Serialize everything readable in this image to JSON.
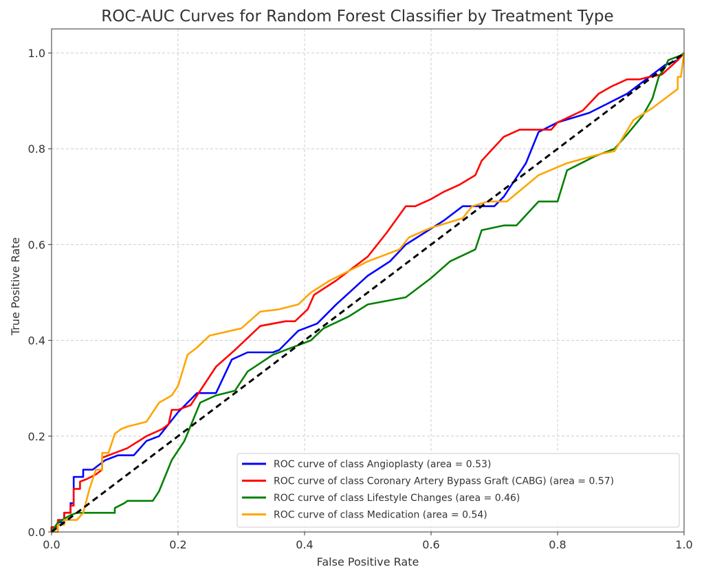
{
  "chart_data": {
    "type": "line",
    "title": "ROC-AUC Curves for Random Forest Classifier by Treatment Type",
    "xlabel": "False Positive Rate",
    "ylabel": "True Positive Rate",
    "xlim": [
      0.0,
      1.0
    ],
    "ylim": [
      0.0,
      1.05
    ],
    "xticks": [
      "0.0",
      "0.2",
      "0.4",
      "0.6",
      "0.8",
      "1.0"
    ],
    "yticks": [
      "0.0",
      "0.2",
      "0.4",
      "0.6",
      "0.8",
      "1.0"
    ],
    "grid": true,
    "legend_position": "lower-right",
    "series": [
      {
        "name": "ROC curve of class Angioplasty (area = 0.53)",
        "color": "#0000ff",
        "x": [
          0.0,
          0.0,
          0.01,
          0.01,
          0.02,
          0.02,
          0.03,
          0.03,
          0.035,
          0.035,
          0.05,
          0.05,
          0.065,
          0.07,
          0.085,
          0.105,
          0.13,
          0.15,
          0.17,
          0.2,
          0.23,
          0.26,
          0.285,
          0.31,
          0.35,
          0.36,
          0.39,
          0.42,
          0.45,
          0.5,
          0.535,
          0.56,
          0.62,
          0.65,
          0.7,
          0.715,
          0.75,
          0.77,
          0.8,
          0.85,
          0.88,
          0.91,
          0.95,
          0.97,
          0.99,
          1.0
        ],
        "y": [
          0.0,
          0.01,
          0.01,
          0.02,
          0.02,
          0.04,
          0.04,
          0.06,
          0.06,
          0.115,
          0.115,
          0.13,
          0.13,
          0.135,
          0.15,
          0.16,
          0.16,
          0.19,
          0.2,
          0.25,
          0.29,
          0.29,
          0.36,
          0.375,
          0.375,
          0.38,
          0.42,
          0.435,
          0.475,
          0.535,
          0.565,
          0.6,
          0.65,
          0.68,
          0.68,
          0.7,
          0.77,
          0.835,
          0.855,
          0.875,
          0.895,
          0.915,
          0.955,
          0.975,
          0.985,
          1.0
        ]
      },
      {
        "name": "ROC curve of class Coronary Artery Bypass Graft (CABG) (area = 0.57)",
        "color": "#ff0000",
        "x": [
          0.0,
          0.0,
          0.01,
          0.01,
          0.02,
          0.02,
          0.03,
          0.03,
          0.035,
          0.035,
          0.045,
          0.045,
          0.055,
          0.07,
          0.08,
          0.08,
          0.1,
          0.12,
          0.15,
          0.175,
          0.185,
          0.19,
          0.2,
          0.22,
          0.26,
          0.29,
          0.33,
          0.37,
          0.385,
          0.405,
          0.415,
          0.45,
          0.5,
          0.53,
          0.56,
          0.575,
          0.6,
          0.62,
          0.645,
          0.67,
          0.68,
          0.715,
          0.74,
          0.78,
          0.79,
          0.8,
          0.84,
          0.865,
          0.885,
          0.91,
          0.93,
          0.945,
          0.965,
          0.99,
          1.0
        ],
        "y": [
          0.0,
          0.01,
          0.01,
          0.025,
          0.025,
          0.04,
          0.04,
          0.055,
          0.055,
          0.09,
          0.09,
          0.105,
          0.11,
          0.12,
          0.13,
          0.155,
          0.165,
          0.175,
          0.2,
          0.215,
          0.225,
          0.255,
          0.255,
          0.265,
          0.345,
          0.38,
          0.43,
          0.44,
          0.44,
          0.465,
          0.495,
          0.525,
          0.575,
          0.625,
          0.68,
          0.68,
          0.695,
          0.71,
          0.725,
          0.745,
          0.775,
          0.825,
          0.84,
          0.84,
          0.84,
          0.855,
          0.88,
          0.915,
          0.93,
          0.945,
          0.945,
          0.95,
          0.955,
          0.985,
          1.0
        ]
      },
      {
        "name": "ROC curve of class Lifestyle Changes (area = 0.46)",
        "color": "#008000",
        "x": [
          0.0,
          0.01,
          0.03,
          0.04,
          0.1,
          0.1,
          0.115,
          0.12,
          0.16,
          0.17,
          0.19,
          0.21,
          0.235,
          0.26,
          0.29,
          0.31,
          0.35,
          0.39,
          0.41,
          0.43,
          0.47,
          0.5,
          0.56,
          0.6,
          0.63,
          0.67,
          0.68,
          0.715,
          0.735,
          0.77,
          0.8,
          0.815,
          0.83,
          0.86,
          0.89,
          0.91,
          0.935,
          0.95,
          0.96,
          0.97,
          0.975,
          0.995,
          1.0
        ],
        "y": [
          0.0,
          0.02,
          0.035,
          0.04,
          0.04,
          0.05,
          0.06,
          0.065,
          0.065,
          0.085,
          0.15,
          0.19,
          0.27,
          0.285,
          0.295,
          0.335,
          0.37,
          0.39,
          0.4,
          0.425,
          0.45,
          0.475,
          0.49,
          0.53,
          0.565,
          0.59,
          0.63,
          0.64,
          0.64,
          0.69,
          0.69,
          0.755,
          0.765,
          0.785,
          0.8,
          0.83,
          0.87,
          0.905,
          0.95,
          0.97,
          0.985,
          0.995,
          1.0
        ]
      },
      {
        "name": "ROC curve of class Medication (area = 0.54)",
        "color": "#ffa500",
        "x": [
          0.0,
          0.01,
          0.01,
          0.02,
          0.02,
          0.04,
          0.05,
          0.06,
          0.07,
          0.08,
          0.08,
          0.09,
          0.1,
          0.11,
          0.12,
          0.15,
          0.17,
          0.19,
          0.2,
          0.215,
          0.23,
          0.25,
          0.3,
          0.33,
          0.36,
          0.39,
          0.41,
          0.44,
          0.5,
          0.55,
          0.565,
          0.6,
          0.65,
          0.665,
          0.69,
          0.72,
          0.77,
          0.815,
          0.87,
          0.89,
          0.92,
          0.95,
          0.97,
          0.99,
          0.99,
          0.995,
          1.0
        ],
        "y": [
          0.0,
          0.0,
          0.015,
          0.015,
          0.025,
          0.025,
          0.04,
          0.09,
          0.13,
          0.13,
          0.165,
          0.165,
          0.205,
          0.215,
          0.22,
          0.23,
          0.27,
          0.285,
          0.305,
          0.37,
          0.385,
          0.41,
          0.425,
          0.46,
          0.465,
          0.475,
          0.5,
          0.525,
          0.565,
          0.59,
          0.615,
          0.635,
          0.655,
          0.68,
          0.69,
          0.69,
          0.745,
          0.77,
          0.79,
          0.795,
          0.86,
          0.885,
          0.905,
          0.925,
          0.95,
          0.95,
          1.0
        ]
      },
      {
        "name": "chance",
        "color": "#000000",
        "x": [
          0.0,
          1.0
        ],
        "y": [
          0.0,
          1.0
        ]
      }
    ]
  }
}
